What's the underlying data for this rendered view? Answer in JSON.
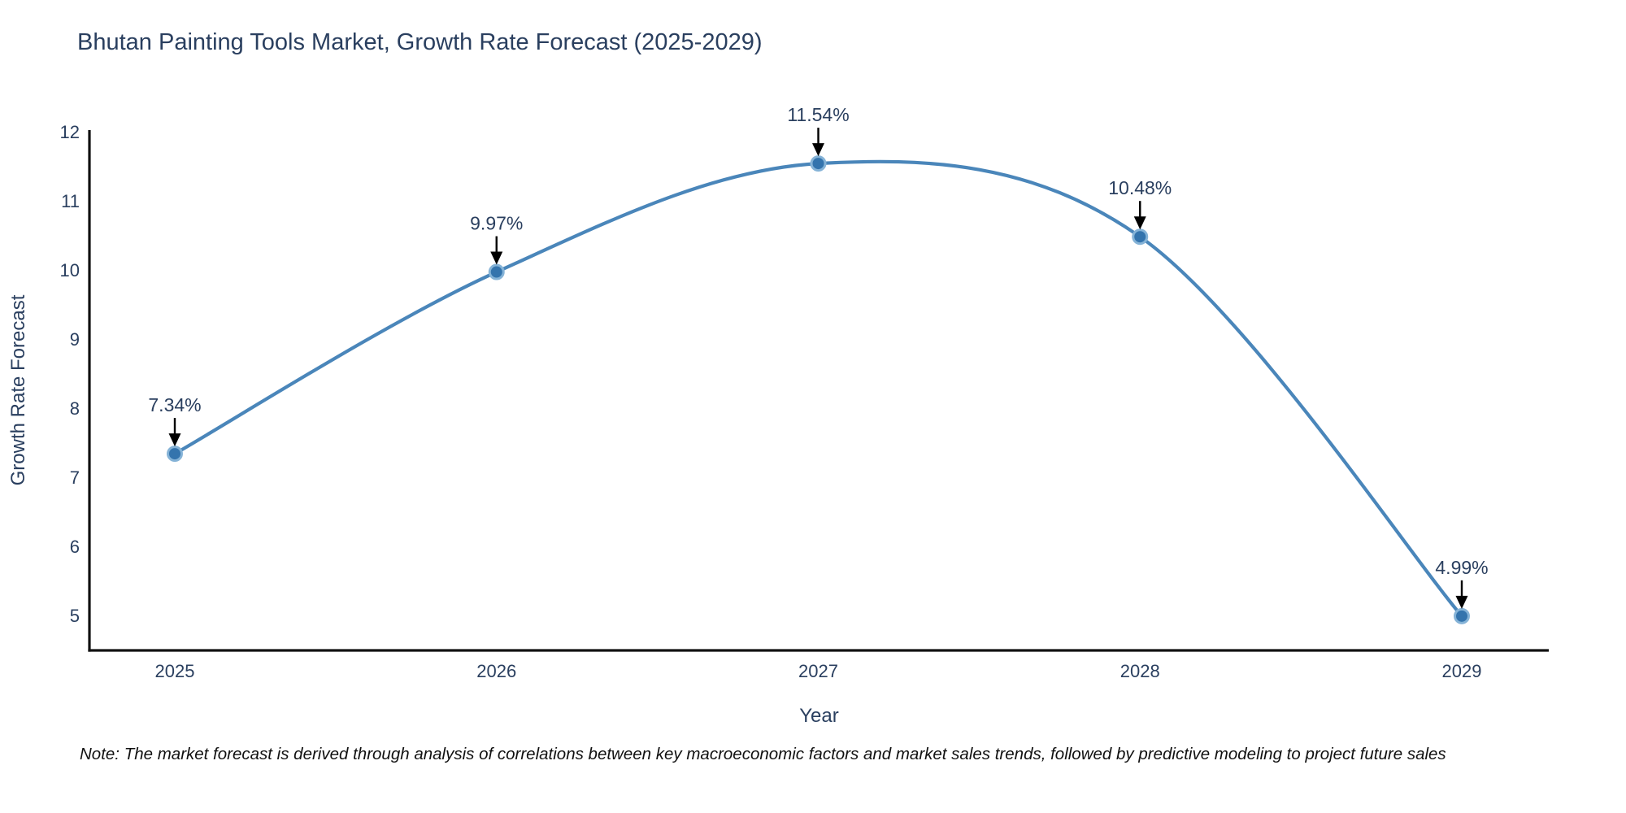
{
  "note": "Note: The market forecast is derived through analysis of correlations between key macroeconomic factors and market sales trends, followed by predictive modeling to project future sales",
  "chart_data": {
    "type": "line",
    "title": "Bhutan Painting Tools Market, Growth Rate Forecast (2025-2029)",
    "x": [
      2025,
      2026,
      2027,
      2028,
      2029
    ],
    "series": [
      {
        "name": "Growth Rate Forecast",
        "values": [
          7.34,
          9.97,
          11.54,
          10.48,
          4.99
        ]
      }
    ],
    "point_labels": [
      "7.34%",
      "9.97%",
      "11.54%",
      "10.48%",
      "4.99%"
    ],
    "xlabel": "Year",
    "ylabel": "Growth Rate Forecast",
    "yticks": [
      5,
      6,
      7,
      8,
      9,
      10,
      11,
      12
    ],
    "ylim": [
      4.5,
      12
    ],
    "grid": false,
    "legend": "none",
    "smooth": true,
    "annotation_arrows": true,
    "colors": {
      "line": "#4a86ba",
      "marker_fill": "#3474ad",
      "marker_edge": "#85b3d7",
      "axis": "#111111",
      "chart_text": "#2a3f5f",
      "annotation_text": "#2a3f5f",
      "arrow": "#000000",
      "note_text": "#111111",
      "background": "#ffffff"
    }
  }
}
